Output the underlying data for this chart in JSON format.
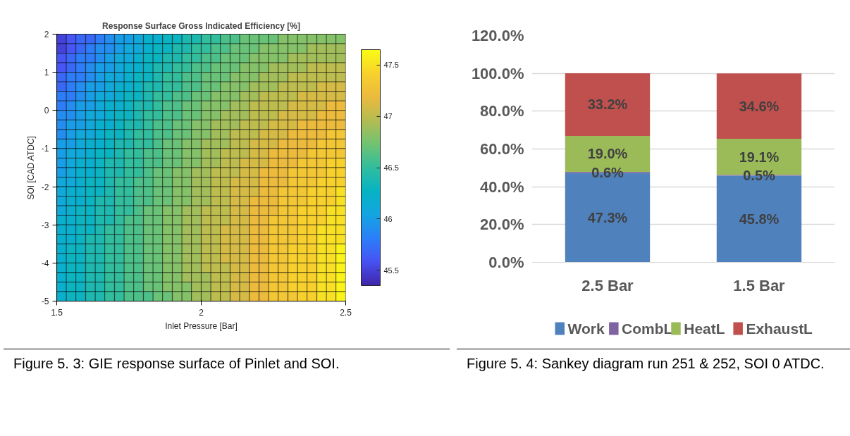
{
  "chart_data": [
    {
      "type": "heatmap",
      "title": "Response Surface Gross Indicated Efficiency [%]",
      "xlabel": "Inlet Pressure [Bar]",
      "ylabel": "SOI [CAD ATDC]",
      "x": [
        1.517,
        1.55,
        1.583,
        1.617,
        1.65,
        1.683,
        1.717,
        1.75,
        1.783,
        1.817,
        1.85,
        1.883,
        1.917,
        1.95,
        1.983,
        2.017,
        2.05,
        2.083,
        2.117,
        2.15,
        2.183,
        2.217,
        2.25,
        2.283,
        2.317,
        2.35,
        2.383,
        2.417,
        2.45,
        2.483
      ],
      "y": [
        1.875,
        1.625,
        1.375,
        1.125,
        0.875,
        0.625,
        0.375,
        0.125,
        -0.125,
        -0.375,
        -0.625,
        -0.875,
        -1.125,
        -1.375,
        -1.625,
        -1.875,
        -2.125,
        -2.375,
        -2.625,
        -2.875,
        -3.125,
        -3.375,
        -3.625,
        -3.875,
        -4.125,
        -4.375,
        -4.625,
        -4.875
      ],
      "xlim": [
        1.5,
        2.5
      ],
      "xticks": [
        1.5,
        2,
        2.5
      ],
      "ylim": [
        -5,
        2
      ],
      "yticks": [
        -5,
        -4,
        -3,
        -2,
        -1,
        0,
        1,
        2
      ],
      "clim": [
        45.35,
        47.65
      ],
      "cticks": [
        45.5,
        46,
        46.5,
        47,
        47.5
      ],
      "cells": [
        [
          45.5,
          45.6,
          45.7,
          45.7,
          45.8,
          45.9,
          46.0,
          46.0,
          46.1,
          46.2,
          46.2,
          46.3,
          46.3,
          46.4,
          46.4,
          46.5,
          46.5,
          46.6,
          46.6,
          46.7,
          46.7,
          46.7,
          46.7,
          46.8,
          46.8,
          46.8,
          46.8,
          46.8,
          46.8,
          46.8
        ],
        [
          45.5,
          45.6,
          45.7,
          45.8,
          45.9,
          45.9,
          46.0,
          46.1,
          46.1,
          46.2,
          46.3,
          46.3,
          46.4,
          46.4,
          46.5,
          46.5,
          46.6,
          46.6,
          46.7,
          46.7,
          46.7,
          46.8,
          46.8,
          46.8,
          46.8,
          46.8,
          46.9,
          46.9,
          46.9,
          46.9
        ],
        [
          45.6,
          45.7,
          45.8,
          45.8,
          45.9,
          46.0,
          46.1,
          46.1,
          46.2,
          46.3,
          46.3,
          46.4,
          46.4,
          46.5,
          46.5,
          46.6,
          46.6,
          46.7,
          46.7,
          46.7,
          46.8,
          46.8,
          46.8,
          46.8,
          46.9,
          46.9,
          46.9,
          46.9,
          46.9,
          46.9
        ],
        [
          45.6,
          45.7,
          45.8,
          45.9,
          46.0,
          46.0,
          46.1,
          46.2,
          46.2,
          46.3,
          46.4,
          46.4,
          46.5,
          46.5,
          46.6,
          46.6,
          46.7,
          46.7,
          46.7,
          46.8,
          46.8,
          46.8,
          46.9,
          46.9,
          46.9,
          46.9,
          47.0,
          47.0,
          47.0,
          47.0
        ],
        [
          45.7,
          45.8,
          45.8,
          45.9,
          46.0,
          46.1,
          46.1,
          46.2,
          46.3,
          46.3,
          46.4,
          46.5,
          46.5,
          46.6,
          46.6,
          46.7,
          46.7,
          46.7,
          46.8,
          46.8,
          46.8,
          46.9,
          46.9,
          46.9,
          47.0,
          47.0,
          47.0,
          47.0,
          47.0,
          47.0
        ],
        [
          45.7,
          45.8,
          45.9,
          46.0,
          46.0,
          46.1,
          46.2,
          46.2,
          46.3,
          46.4,
          46.4,
          46.5,
          46.5,
          46.6,
          46.6,
          46.7,
          46.7,
          46.8,
          46.8,
          46.8,
          46.9,
          46.9,
          46.9,
          47.0,
          47.0,
          47.0,
          47.0,
          47.1,
          47.1,
          47.1
        ],
        [
          45.8,
          45.8,
          45.9,
          46.0,
          46.1,
          46.1,
          46.2,
          46.3,
          46.3,
          46.4,
          46.5,
          46.5,
          46.6,
          46.6,
          46.7,
          46.7,
          46.8,
          46.8,
          46.8,
          46.9,
          46.9,
          47.0,
          47.0,
          47.0,
          47.0,
          47.1,
          47.1,
          47.1,
          47.1,
          47.1
        ],
        [
          45.8,
          45.9,
          46.0,
          46.0,
          46.1,
          46.2,
          46.2,
          46.3,
          46.4,
          46.4,
          46.5,
          46.6,
          46.6,
          46.7,
          46.7,
          46.8,
          46.8,
          46.8,
          46.9,
          46.9,
          47.0,
          47.0,
          47.0,
          47.0,
          47.1,
          47.1,
          47.1,
          47.1,
          47.2,
          47.2
        ],
        [
          45.9,
          45.9,
          46.0,
          46.1,
          46.1,
          46.2,
          46.3,
          46.3,
          46.4,
          46.5,
          46.5,
          46.6,
          46.6,
          46.7,
          46.7,
          46.8,
          46.8,
          46.9,
          46.9,
          46.9,
          47.0,
          47.0,
          47.0,
          47.1,
          47.1,
          47.1,
          47.1,
          47.2,
          47.2,
          47.2
        ],
        [
          45.9,
          46.0,
          46.0,
          46.1,
          46.2,
          46.2,
          46.3,
          46.4,
          46.4,
          46.5,
          46.6,
          46.6,
          46.7,
          46.7,
          46.8,
          46.8,
          46.9,
          46.9,
          46.9,
          47.0,
          47.0,
          47.0,
          47.1,
          47.1,
          47.1,
          47.2,
          47.2,
          47.2,
          47.2,
          47.2
        ],
        [
          45.9,
          46.0,
          46.1,
          46.1,
          46.2,
          46.3,
          46.3,
          46.4,
          46.5,
          46.5,
          46.6,
          46.6,
          46.7,
          46.7,
          46.8,
          46.8,
          46.9,
          46.9,
          47.0,
          47.0,
          47.0,
          47.1,
          47.1,
          47.1,
          47.2,
          47.2,
          47.2,
          47.2,
          47.3,
          47.3
        ],
        [
          46.0,
          46.0,
          46.1,
          46.2,
          46.2,
          46.3,
          46.4,
          46.4,
          46.5,
          46.5,
          46.6,
          46.7,
          46.7,
          46.8,
          46.8,
          46.9,
          46.9,
          46.9,
          47.0,
          47.0,
          47.1,
          47.1,
          47.1,
          47.2,
          47.2,
          47.2,
          47.2,
          47.3,
          47.3,
          47.3
        ],
        [
          46.0,
          46.1,
          46.1,
          46.2,
          46.3,
          46.3,
          46.4,
          46.5,
          46.5,
          46.6,
          46.6,
          46.7,
          46.7,
          46.8,
          46.8,
          46.9,
          46.9,
          47.0,
          47.0,
          47.0,
          47.1,
          47.1,
          47.2,
          47.2,
          47.2,
          47.2,
          47.3,
          47.3,
          47.3,
          47.3
        ],
        [
          46.0,
          46.1,
          46.2,
          46.2,
          46.3,
          46.4,
          46.4,
          46.5,
          46.5,
          46.6,
          46.6,
          46.7,
          46.7,
          46.8,
          46.8,
          46.9,
          46.9,
          47.0,
          47.0,
          47.1,
          47.1,
          47.1,
          47.2,
          47.2,
          47.2,
          47.3,
          47.3,
          47.3,
          47.4,
          47.4
        ],
        [
          46.0,
          46.1,
          46.2,
          46.2,
          46.3,
          46.4,
          46.4,
          46.5,
          46.5,
          46.6,
          46.7,
          46.7,
          46.8,
          46.8,
          46.9,
          46.9,
          47.0,
          47.0,
          47.0,
          47.1,
          47.1,
          47.2,
          47.2,
          47.2,
          47.3,
          47.3,
          47.3,
          47.3,
          47.4,
          47.4
        ],
        [
          46.1,
          46.1,
          46.2,
          46.3,
          46.3,
          46.4,
          46.5,
          46.5,
          46.6,
          46.6,
          46.7,
          46.7,
          46.8,
          46.8,
          46.9,
          46.9,
          47.0,
          47.0,
          47.1,
          47.1,
          47.1,
          47.2,
          47.2,
          47.2,
          47.3,
          47.3,
          47.3,
          47.4,
          47.4,
          47.4
        ],
        [
          46.1,
          46.2,
          46.2,
          46.3,
          46.3,
          46.4,
          46.5,
          46.5,
          46.6,
          46.6,
          46.7,
          46.7,
          46.8,
          46.8,
          46.9,
          46.9,
          47.0,
          47.0,
          47.1,
          47.1,
          47.1,
          47.2,
          47.2,
          47.3,
          47.3,
          47.3,
          47.4,
          47.4,
          47.4,
          47.5
        ],
        [
          46.1,
          46.2,
          46.2,
          46.3,
          46.4,
          46.4,
          46.5,
          46.5,
          46.6,
          46.6,
          46.7,
          46.7,
          46.8,
          46.8,
          46.9,
          46.9,
          47.0,
          47.0,
          47.1,
          47.1,
          47.2,
          47.2,
          47.2,
          47.3,
          47.3,
          47.3,
          47.4,
          47.4,
          47.4,
          47.5
        ],
        [
          46.1,
          46.2,
          46.3,
          46.3,
          46.4,
          46.4,
          46.5,
          46.5,
          46.6,
          46.7,
          46.7,
          46.8,
          46.8,
          46.9,
          46.9,
          47.0,
          47.0,
          47.0,
          47.1,
          47.1,
          47.2,
          47.2,
          47.2,
          47.3,
          47.3,
          47.4,
          47.4,
          47.4,
          47.5,
          47.5
        ],
        [
          46.2,
          46.2,
          46.3,
          46.3,
          46.4,
          46.4,
          46.5,
          46.6,
          46.6,
          46.7,
          46.7,
          46.8,
          46.8,
          46.9,
          46.9,
          47.0,
          47.0,
          47.0,
          47.1,
          47.1,
          47.2,
          47.2,
          47.3,
          47.3,
          47.3,
          47.4,
          47.4,
          47.4,
          47.5,
          47.5
        ],
        [
          46.2,
          46.2,
          46.3,
          46.3,
          46.4,
          46.5,
          46.5,
          46.6,
          46.6,
          46.7,
          46.7,
          46.8,
          46.8,
          46.9,
          46.9,
          47.0,
          47.0,
          47.1,
          47.1,
          47.1,
          47.2,
          47.2,
          47.3,
          47.3,
          47.3,
          47.4,
          47.4,
          47.5,
          47.5,
          47.5
        ],
        [
          46.2,
          46.2,
          46.3,
          46.4,
          46.4,
          46.5,
          46.5,
          46.6,
          46.6,
          46.7,
          46.7,
          46.8,
          46.8,
          46.9,
          46.9,
          47.0,
          47.0,
          47.1,
          47.1,
          47.1,
          47.2,
          47.2,
          47.3,
          47.3,
          47.3,
          47.4,
          47.4,
          47.5,
          47.5,
          47.5
        ],
        [
          46.2,
          46.3,
          46.3,
          46.4,
          46.4,
          46.5,
          46.5,
          46.6,
          46.6,
          46.7,
          46.7,
          46.8,
          46.8,
          46.9,
          46.9,
          47.0,
          47.0,
          47.1,
          47.1,
          47.1,
          47.2,
          47.2,
          47.3,
          47.3,
          47.4,
          47.4,
          47.4,
          47.5,
          47.5,
          47.6
        ],
        [
          46.2,
          46.3,
          46.3,
          46.4,
          46.4,
          46.5,
          46.5,
          46.6,
          46.6,
          46.7,
          46.7,
          46.8,
          46.8,
          46.9,
          46.9,
          47.0,
          47.0,
          47.1,
          47.1,
          47.1,
          47.2,
          47.2,
          47.3,
          47.3,
          47.4,
          47.4,
          47.4,
          47.5,
          47.5,
          47.6
        ],
        [
          46.2,
          46.3,
          46.3,
          46.4,
          46.4,
          46.5,
          46.5,
          46.6,
          46.6,
          46.7,
          46.7,
          46.8,
          46.8,
          46.9,
          46.9,
          47.0,
          47.0,
          47.0,
          47.1,
          47.1,
          47.2,
          47.2,
          47.3,
          47.3,
          47.4,
          47.4,
          47.4,
          47.5,
          47.5,
          47.6
        ],
        [
          46.2,
          46.3,
          46.3,
          46.4,
          46.4,
          46.5,
          46.5,
          46.6,
          46.6,
          46.7,
          46.7,
          46.8,
          46.8,
          46.9,
          46.9,
          46.9,
          47.0,
          47.0,
          47.1,
          47.1,
          47.2,
          47.2,
          47.3,
          47.3,
          47.4,
          47.4,
          47.4,
          47.5,
          47.5,
          47.6
        ],
        [
          46.2,
          46.3,
          46.3,
          46.4,
          46.4,
          46.5,
          46.5,
          46.6,
          46.6,
          46.7,
          46.7,
          46.8,
          46.8,
          46.8,
          46.9,
          46.9,
          47.0,
          47.0,
          47.1,
          47.1,
          47.2,
          47.2,
          47.3,
          47.3,
          47.4,
          47.4,
          47.4,
          47.5,
          47.5,
          47.6
        ],
        [
          46.2,
          46.3,
          46.3,
          46.4,
          46.4,
          46.5,
          46.5,
          46.6,
          46.6,
          46.6,
          46.7,
          46.7,
          46.8,
          46.8,
          46.9,
          46.9,
          47.0,
          47.0,
          47.1,
          47.1,
          47.2,
          47.2,
          47.3,
          47.3,
          47.3,
          47.4,
          47.4,
          47.5,
          47.5,
          47.6
        ]
      ],
      "annotations": [
        "Figure 5. 3: GIE response surface of Pinlet and SOI."
      ]
    },
    {
      "type": "bar",
      "stacked": true,
      "categories": [
        "2.5 Bar",
        "1.5 Bar"
      ],
      "series": [
        {
          "name": "Work",
          "color": "#4f81bd",
          "values": [
            47.3,
            45.8
          ],
          "value_labels": [
            "47.3%",
            "45.8%"
          ]
        },
        {
          "name": "CombL",
          "color": "#8064a2",
          "values": [
            0.6,
            0.5
          ],
          "value_labels": [
            "0.6%",
            "0.5%"
          ]
        },
        {
          "name": "HeatL",
          "color": "#9bbb59",
          "values": [
            19.0,
            19.1
          ],
          "value_labels": [
            "19.0%",
            "19.1%"
          ]
        },
        {
          "name": "ExhaustL",
          "color": "#c0504d",
          "values": [
            33.2,
            34.6
          ],
          "value_labels": [
            "33.2%",
            "34.6%"
          ]
        }
      ],
      "ylim": [
        0,
        120
      ],
      "yticks": [
        {
          "value": 0,
          "label": "0.0%"
        },
        {
          "value": 20,
          "label": "20.0%"
        },
        {
          "value": 40,
          "label": "40.0%"
        },
        {
          "value": 60,
          "label": "60.0%"
        },
        {
          "value": 80,
          "label": "80.0%"
        },
        {
          "value": 100,
          "label": "100.0%"
        },
        {
          "value": 120,
          "label": "120.0%"
        }
      ],
      "grid": "y",
      "legend": "bottom",
      "annotations": [
        "Figure 5. 4: Sankey diagram run 251 & 252, SOI 0 ATDC."
      ]
    }
  ]
}
